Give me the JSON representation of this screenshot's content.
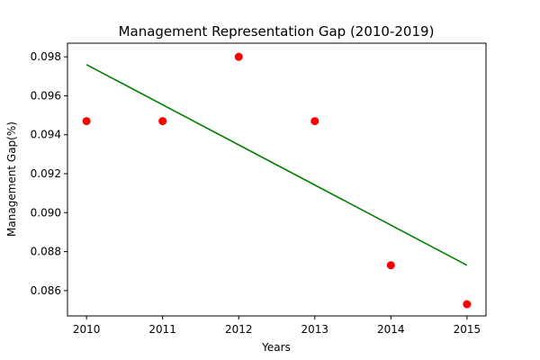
{
  "chart_data": {
    "type": "scatter",
    "title": "Management Representation Gap (2010-2019)",
    "xlabel": "Years",
    "ylabel": "Management Gap(%)",
    "x": [
      2010,
      2011,
      2012,
      2013,
      2014,
      2015
    ],
    "xlim": [
      2009.75,
      2015.25
    ],
    "ylim": [
      0.0847,
      0.0987
    ],
    "xticks": [
      2010,
      2011,
      2012,
      2013,
      2014,
      2015
    ],
    "yticks": [
      0.086,
      0.088,
      0.09,
      0.092,
      0.094,
      0.096,
      0.098
    ],
    "ytick_labels": [
      "0.086",
      "0.088",
      "0.090",
      "0.092",
      "0.094",
      "0.096",
      "0.098"
    ],
    "grid": false,
    "series": [
      {
        "kind": "scatter",
        "color": "#ff0000",
        "x": [
          2010,
          2011,
          2012,
          2013,
          2014,
          2015
        ],
        "y": [
          0.0947,
          0.0947,
          0.098,
          0.0947,
          0.0873,
          0.0853
        ]
      },
      {
        "kind": "line",
        "color": "#008000",
        "x": [
          2010,
          2015
        ],
        "y": [
          0.0976,
          0.0873
        ]
      }
    ]
  }
}
